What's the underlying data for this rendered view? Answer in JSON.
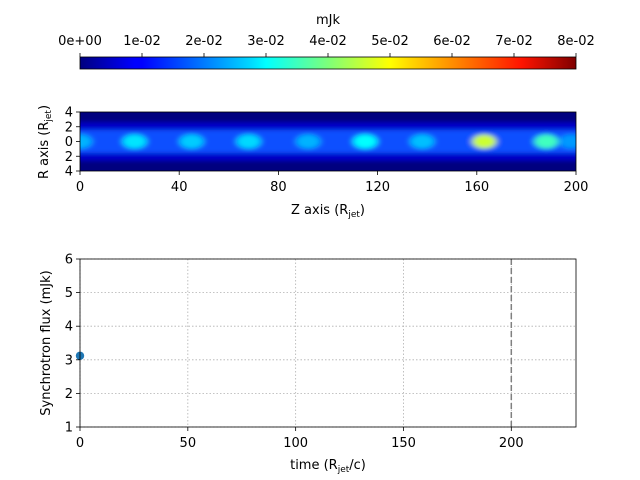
{
  "colorbar": {
    "label": "mJk",
    "ticks": [
      "0e+00",
      "1e-02",
      "2e-02",
      "3e-02",
      "4e-02",
      "5e-02",
      "6e-02",
      "7e-02",
      "8e-02"
    ],
    "colormap": "jet",
    "range": [
      0,
      0.08
    ]
  },
  "chart_data": [
    {
      "type": "heatmap",
      "xlabel_main": "Z axis (R",
      "xlabel_sub": "jet",
      "xlabel_close": ")",
      "ylabel_main": "R axis (R",
      "ylabel_sub": "jet",
      "ylabel_close": ")",
      "xlim": [
        0,
        200
      ],
      "ylim": [
        -4,
        4
      ],
      "xticks": [
        "0",
        "40",
        "80",
        "120",
        "160",
        "200"
      ],
      "yticks": [
        "4",
        "2",
        "0",
        "2",
        "4"
      ],
      "colormap": "jet",
      "background_value": 0,
      "jet_core_value": 0.012,
      "knots": [
        {
          "z": 0,
          "v": 0.024
        },
        {
          "z": 22,
          "v": 0.028
        },
        {
          "z": 45,
          "v": 0.026
        },
        {
          "z": 68,
          "v": 0.027
        },
        {
          "z": 92,
          "v": 0.024
        },
        {
          "z": 115,
          "v": 0.03
        },
        {
          "z": 138,
          "v": 0.025
        },
        {
          "z": 163,
          "v": 0.046
        },
        {
          "z": 188,
          "v": 0.035
        },
        {
          "z": 198,
          "v": 0.022
        }
      ]
    },
    {
      "type": "scatter",
      "xlabel_main": "time (R",
      "xlabel_sub": "jet",
      "xlabel_close": "/c)",
      "ylabel": "Synchrotron flux (mJk)",
      "xlim": [
        0,
        230
      ],
      "ylim": [
        1,
        6
      ],
      "xticks": [
        "0",
        "50",
        "100",
        "150",
        "200"
      ],
      "yticks": [
        "1",
        "2",
        "3",
        "4",
        "5",
        "6"
      ],
      "grid": true,
      "points": [
        {
          "x": 0,
          "y": 3.12
        }
      ],
      "vline_x": 200,
      "point_color": "#1f77b4"
    }
  ]
}
